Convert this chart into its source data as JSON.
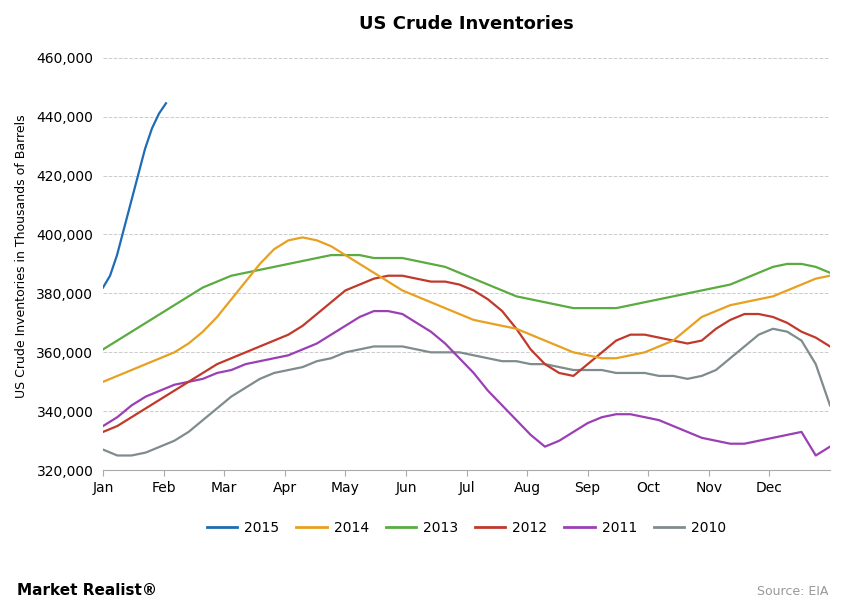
{
  "title": "US Crude Inventories",
  "ylabel": "US Crude Inventories in Thousands of Barrels",
  "source_text": "Source: EIA",
  "watermark": "Market Realist®",
  "ylim": [
    320000,
    465000
  ],
  "yticks": [
    320000,
    340000,
    360000,
    380000,
    400000,
    420000,
    440000,
    460000
  ],
  "colors": {
    "2015": "#1f6cb5",
    "2014": "#e8a020",
    "2013": "#5aab40",
    "2012": "#c0392b",
    "2011": "#9b3fb5",
    "2010": "#7f8c8d"
  },
  "series_x": {
    "2015": [
      0,
      0.5,
      1.0,
      1.5,
      2.0,
      2.5,
      3.0,
      3.5,
      4.0,
      4.5
    ],
    "2014": null,
    "2013": null,
    "2012": null,
    "2011": null,
    "2010": null
  },
  "series": {
    "2015": [
      382000,
      386000,
      393000,
      402000,
      411000,
      420000,
      429000,
      436000,
      441000,
      444500
    ],
    "2014": [
      350000,
      352000,
      354000,
      356000,
      358000,
      360000,
      363000,
      367000,
      372000,
      378000,
      384000,
      390000,
      395000,
      398000,
      399000,
      398000,
      396000,
      393000,
      390000,
      387000,
      384000,
      381000,
      379000,
      377000,
      375000,
      373000,
      371000,
      370000,
      369000,
      368000,
      366000,
      364000,
      362000,
      360000,
      359000,
      358000,
      358000,
      359000,
      360000,
      362000,
      364000,
      368000,
      372000,
      374000,
      376000,
      377000,
      378000,
      379000,
      381000,
      383000,
      385000,
      386000
    ],
    "2013": [
      361000,
      364000,
      367000,
      370000,
      373000,
      376000,
      379000,
      382000,
      384000,
      386000,
      387000,
      388000,
      389000,
      390000,
      391000,
      392000,
      393000,
      393000,
      393000,
      392000,
      392000,
      392000,
      391000,
      390000,
      389000,
      387000,
      385000,
      383000,
      381000,
      379000,
      378000,
      377000,
      376000,
      375000,
      375000,
      375000,
      375000,
      376000,
      377000,
      378000,
      379000,
      380000,
      381000,
      382000,
      383000,
      385000,
      387000,
      389000,
      390000,
      390000,
      389000,
      387000
    ],
    "2012": [
      333000,
      335000,
      338000,
      341000,
      344000,
      347000,
      350000,
      353000,
      356000,
      358000,
      360000,
      362000,
      364000,
      366000,
      369000,
      373000,
      377000,
      381000,
      383000,
      385000,
      386000,
      386000,
      385000,
      384000,
      384000,
      383000,
      381000,
      378000,
      374000,
      368000,
      361000,
      356000,
      353000,
      352000,
      356000,
      360000,
      364000,
      366000,
      366000,
      365000,
      364000,
      363000,
      364000,
      368000,
      371000,
      373000,
      373000,
      372000,
      370000,
      367000,
      365000,
      362000
    ],
    "2011": [
      335000,
      338000,
      342000,
      345000,
      347000,
      349000,
      350000,
      351000,
      353000,
      354000,
      356000,
      357000,
      358000,
      359000,
      361000,
      363000,
      366000,
      369000,
      372000,
      374000,
      374000,
      373000,
      370000,
      367000,
      363000,
      358000,
      353000,
      347000,
      342000,
      337000,
      332000,
      328000,
      330000,
      333000,
      336000,
      338000,
      339000,
      339000,
      338000,
      337000,
      335000,
      333000,
      331000,
      330000,
      329000,
      329000,
      330000,
      331000,
      332000,
      333000,
      325000,
      328000
    ],
    "2010": [
      327000,
      325000,
      325000,
      326000,
      328000,
      330000,
      333000,
      337000,
      341000,
      345000,
      348000,
      351000,
      353000,
      354000,
      355000,
      357000,
      358000,
      360000,
      361000,
      362000,
      362000,
      362000,
      361000,
      360000,
      360000,
      360000,
      359000,
      358000,
      357000,
      357000,
      356000,
      356000,
      355000,
      354000,
      354000,
      354000,
      353000,
      353000,
      353000,
      352000,
      352000,
      351000,
      352000,
      354000,
      358000,
      362000,
      366000,
      368000,
      367000,
      364000,
      356000,
      342000
    ]
  }
}
